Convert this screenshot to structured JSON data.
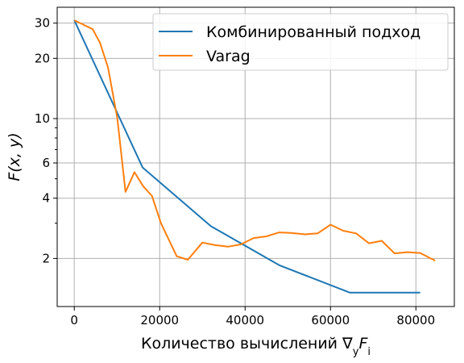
{
  "chart_data": {
    "type": "line",
    "xlabel": "Количество вычислений ∇",
    "xlabel_sub": "y",
    "xlabel_var": "F",
    "xlabel_var_sub": "i",
    "ylabel": "F(x, y)",
    "xlim": [
      -4000,
      89000
    ],
    "ylim": [
      1.15,
      36
    ],
    "yscale": "log",
    "grid": true,
    "legend": "top-right",
    "x_ticks": [
      0,
      20000,
      40000,
      60000,
      80000
    ],
    "x_tick_labels": [
      "0",
      "20000",
      "40000",
      "60000",
      "80000"
    ],
    "y_ticks": [
      2,
      4,
      6,
      10,
      20,
      30
    ],
    "y_tick_labels": [
      "2",
      "4",
      "6",
      "10",
      "20",
      "30"
    ],
    "series": [
      {
        "name": "Комбинированный подход",
        "color": "#1f77b4",
        "x": [
          0,
          16000,
          32000,
          48000,
          64500,
          81000
        ],
        "y": [
          31,
          5.7,
          2.9,
          1.85,
          1.35,
          1.35
        ]
      },
      {
        "name": "Varag",
        "color": "#ff7f0e",
        "x": [
          0,
          1400,
          2800,
          4300,
          6000,
          7900,
          10100,
          12000,
          14100,
          16100,
          18200,
          20300,
          24000,
          26600,
          30000,
          33000,
          36000,
          39000,
          42000,
          45000,
          48000,
          51000,
          54000,
          57000,
          60000,
          63000,
          66000,
          69000,
          72000,
          75000,
          78000,
          81000,
          84500
        ],
        "y": [
          31,
          30,
          29,
          28,
          24,
          18,
          10,
          4.3,
          5.4,
          4.6,
          4.1,
          3.0,
          2.05,
          1.97,
          2.4,
          2.33,
          2.29,
          2.35,
          2.53,
          2.58,
          2.7,
          2.68,
          2.64,
          2.67,
          2.95,
          2.75,
          2.67,
          2.38,
          2.45,
          2.12,
          2.15,
          2.13,
          1.95
        ]
      }
    ]
  }
}
